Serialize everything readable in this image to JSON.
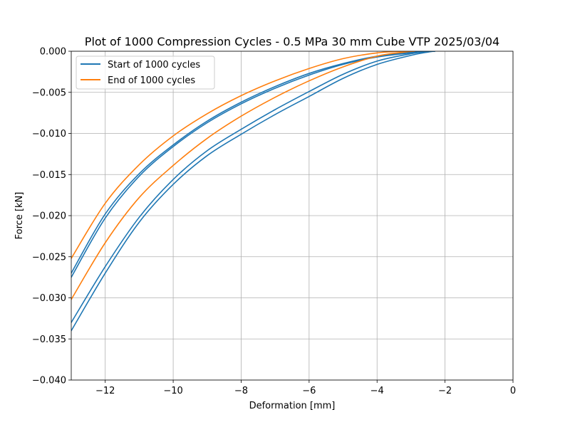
{
  "chart_data": {
    "type": "line",
    "title": "Plot of 1000 Compression Cycles - 0.5 MPa 30 mm Cube VTP 2025/03/04",
    "xlabel": "Deformation [mm]",
    "ylabel": "Force [kN]",
    "xlim": [
      -13,
      0
    ],
    "ylim": [
      -0.04,
      0.0
    ],
    "xticks": [
      -12,
      -10,
      -8,
      -6,
      -4,
      -2,
      0
    ],
    "xtick_labels": [
      "−12",
      "−10",
      "−8",
      "−6",
      "−4",
      "−2",
      "0"
    ],
    "yticks": [
      0.0,
      -0.005,
      -0.01,
      -0.015,
      -0.02,
      -0.025,
      -0.03,
      -0.035,
      -0.04
    ],
    "ytick_labels": [
      "0.000",
      "−0.005",
      "−0.010",
      "−0.015",
      "−0.020",
      "−0.025",
      "−0.030",
      "−0.035",
      "−0.040"
    ],
    "grid": true,
    "legend_position": "upper-left",
    "series": [
      {
        "name": "Start of 1000 cycles",
        "color": "#1f77b4",
        "curves": [
          {
            "x": [
              -13,
              -12,
              -11,
              -10,
              -9,
              -8,
              -7,
              -6,
              -5,
              -4,
              -3,
              -2.5,
              -2.3
            ],
            "y": [
              -0.034,
              -0.027,
              -0.0208,
              -0.0162,
              -0.0127,
              -0.0101,
              -0.0077,
              -0.0055,
              -0.0033,
              -0.0016,
              -0.0005,
              -0.0001,
              0.0
            ]
          },
          {
            "x": [
              -13,
              -12,
              -11,
              -10,
              -9,
              -8,
              -7,
              -6,
              -5,
              -4,
              -3,
              -2.5,
              -2.3
            ],
            "y": [
              -0.033,
              -0.0262,
              -0.0202,
              -0.0156,
              -0.0121,
              -0.0095,
              -0.0071,
              -0.0049,
              -0.0028,
              -0.0012,
              -0.0003,
              -5e-05,
              0.0
            ]
          },
          {
            "x": [
              -13,
              -12,
              -11,
              -10,
              -9,
              -8,
              -7,
              -6,
              -5,
              -4,
              -3,
              -2.5,
              -2.3
            ],
            "y": [
              -0.0275,
              -0.0203,
              -0.0152,
              -0.0116,
              -0.0087,
              -0.0064,
              -0.0045,
              -0.0029,
              -0.0016,
              -0.0007,
              -0.0002,
              -5e-05,
              0.0
            ]
          },
          {
            "x": [
              -13,
              -12,
              -11,
              -10,
              -9,
              -8,
              -7,
              -6,
              -5,
              -4,
              -3,
              -2.5,
              -2.3
            ],
            "y": [
              -0.027,
              -0.0198,
              -0.0149,
              -0.0114,
              -0.0085,
              -0.0062,
              -0.0043,
              -0.0027,
              -0.0015,
              -0.0006,
              -0.0001,
              -3e-05,
              0.0
            ]
          }
        ]
      },
      {
        "name": "End of 1000 cycles",
        "color": "#ff7f0e",
        "curves": [
          {
            "x": [
              -13,
              -12,
              -11,
              -10,
              -9,
              -8,
              -7,
              -6,
              -5,
              -4,
              -3.2,
              -2.9
            ],
            "y": [
              -0.0302,
              -0.0233,
              -0.0178,
              -0.0139,
              -0.0106,
              -0.0079,
              -0.0056,
              -0.0036,
              -0.0019,
              -0.0006,
              -0.0001,
              0.0
            ]
          },
          {
            "x": [
              -13,
              -12,
              -11,
              -10,
              -9,
              -8,
              -7,
              -6,
              -5,
              -4,
              -3.2,
              -2.9
            ],
            "y": [
              -0.0252,
              -0.0185,
              -0.0138,
              -0.0103,
              -0.0076,
              -0.0054,
              -0.0036,
              -0.0021,
              -0.0009,
              -0.0002,
              0.0,
              0.0
            ]
          }
        ]
      }
    ]
  }
}
